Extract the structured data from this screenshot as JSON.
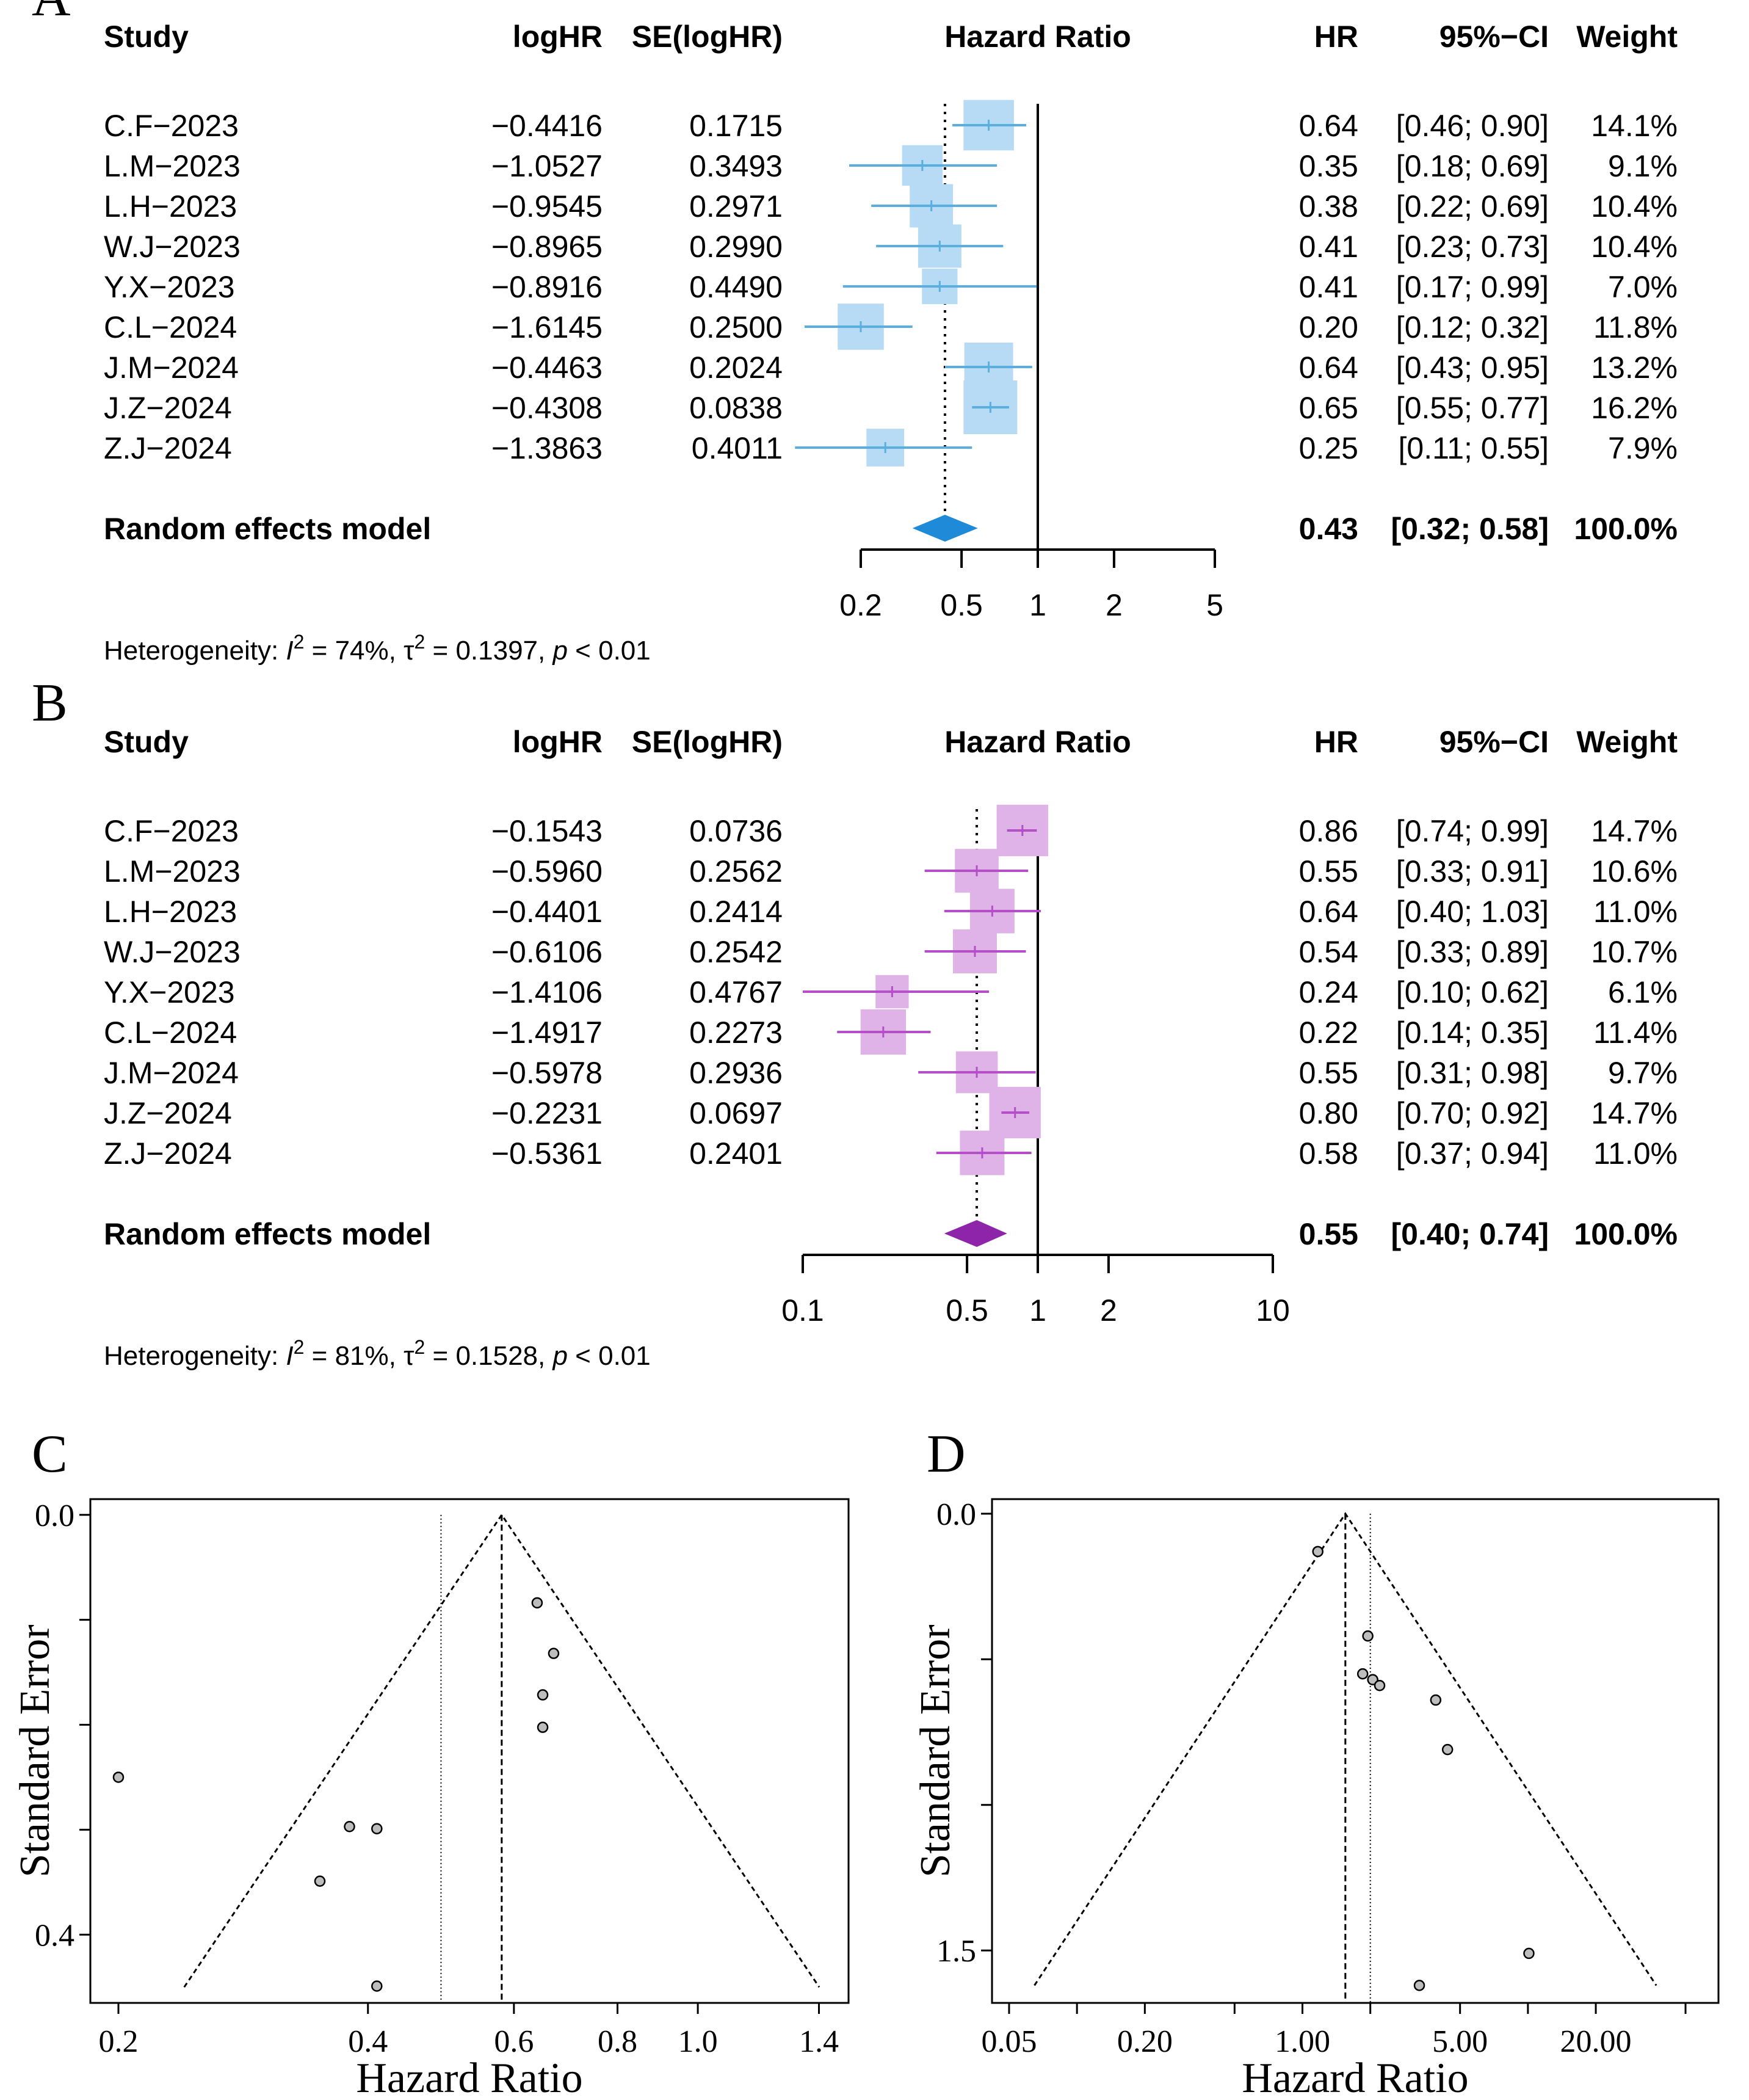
{
  "panels": {
    "A": {
      "letter": "A",
      "headers": {
        "study": "Study",
        "loghr": "logHR",
        "se": "SE(logHR)",
        "plot": "Hazard Ratio",
        "hr": "HR",
        "ci": "95%−CI",
        "weight": "Weight"
      },
      "rows": [
        {
          "study": "C.F−2023",
          "loghr": "−0.4416",
          "se": "0.1715",
          "hr": "0.64",
          "ci": "[0.46; 0.90]",
          "weight": "14.1%",
          "hr_val": 0.64,
          "lo": 0.46,
          "hi": 0.9,
          "w": 14.1
        },
        {
          "study": "L.M−2023",
          "loghr": "−1.0527",
          "se": "0.3493",
          "hr": "0.35",
          "ci": "[0.18; 0.69]",
          "weight": "9.1%",
          "hr_val": 0.35,
          "lo": 0.18,
          "hi": 0.69,
          "w": 9.1
        },
        {
          "study": "L.H−2023",
          "loghr": "−0.9545",
          "se": "0.2971",
          "hr": "0.38",
          "ci": "[0.22; 0.69]",
          "weight": "10.4%",
          "hr_val": 0.38,
          "lo": 0.22,
          "hi": 0.69,
          "w": 10.4
        },
        {
          "study": "W.J−2023",
          "loghr": "−0.8965",
          "se": "0.2990",
          "hr": "0.41",
          "ci": "[0.23; 0.73]",
          "weight": "10.4%",
          "hr_val": 0.41,
          "lo": 0.23,
          "hi": 0.73,
          "w": 10.4
        },
        {
          "study": "Y.X−2023",
          "loghr": "−0.8916",
          "se": "0.4490",
          "hr": "0.41",
          "ci": "[0.17; 0.99]",
          "weight": "7.0%",
          "hr_val": 0.41,
          "lo": 0.17,
          "hi": 0.99,
          "w": 7.0
        },
        {
          "study": "C.L−2024",
          "loghr": "−1.6145",
          "se": "0.2500",
          "hr": "0.20",
          "ci": "[0.12; 0.32]",
          "weight": "11.8%",
          "hr_val": 0.2,
          "lo": 0.12,
          "hi": 0.32,
          "w": 11.8
        },
        {
          "study": "J.M−2024",
          "loghr": "−0.4463",
          "se": "0.2024",
          "hr": "0.64",
          "ci": "[0.43; 0.95]",
          "weight": "13.2%",
          "hr_val": 0.64,
          "lo": 0.43,
          "hi": 0.95,
          "w": 13.2
        },
        {
          "study": "J.Z−2024",
          "loghr": "−0.4308",
          "se": "0.0838",
          "hr": "0.65",
          "ci": "[0.55; 0.77]",
          "weight": "16.2%",
          "hr_val": 0.65,
          "lo": 0.55,
          "hi": 0.77,
          "w": 16.2
        },
        {
          "study": "Z.J−2024",
          "loghr": "−1.3863",
          "se": "0.4011",
          "hr": "0.25",
          "ci": "[0.11; 0.55]",
          "weight": "7.9%",
          "hr_val": 0.25,
          "lo": 0.11,
          "hi": 0.55,
          "w": 7.9
        }
      ],
      "model": {
        "label": "Random effects model",
        "hr": "0.43",
        "ci": "[0.32; 0.58]",
        "weight": "100.0%",
        "hr_val": 0.43,
        "lo": 0.32,
        "hi": 0.58
      },
      "axis_ticks": [
        0.2,
        0.5,
        1,
        2,
        5
      ],
      "axis_labels": [
        "0.2",
        "0.5",
        "1",
        "2",
        "5"
      ],
      "het": {
        "prefix": "Heterogeneity: ",
        "i2_sym": "I",
        "i2_exp": "2",
        "i2_val": " = 74%, ",
        "tau_sym": "τ",
        "tau_exp": "2",
        "tau_val": " = 0.1397, ",
        "p_sym": "p",
        "p_val": " < 0.01"
      },
      "colors": {
        "ci": "#5aaee0",
        "box": "#b7dbf4",
        "diamond": "#1f8ad8"
      }
    },
    "B": {
      "letter": "B",
      "headers": {
        "study": "Study",
        "loghr": "logHR",
        "se": "SE(logHR)",
        "plot": "Hazard Ratio",
        "hr": "HR",
        "ci": "95%−CI",
        "weight": "Weight"
      },
      "rows": [
        {
          "study": "C.F−2023",
          "loghr": "−0.1543",
          "se": "0.0736",
          "hr": "0.86",
          "ci": "[0.74; 0.99]",
          "weight": "14.7%",
          "hr_val": 0.86,
          "lo": 0.74,
          "hi": 0.99,
          "w": 14.7
        },
        {
          "study": "L.M−2023",
          "loghr": "−0.5960",
          "se": "0.2562",
          "hr": "0.55",
          "ci": "[0.33; 0.91]",
          "weight": "10.6%",
          "hr_val": 0.55,
          "lo": 0.33,
          "hi": 0.91,
          "w": 10.6
        },
        {
          "study": "L.H−2023",
          "loghr": "−0.4401",
          "se": "0.2414",
          "hr": "0.64",
          "ci": "[0.40; 1.03]",
          "weight": "11.0%",
          "hr_val": 0.64,
          "lo": 0.4,
          "hi": 1.03,
          "w": 11.0
        },
        {
          "study": "W.J−2023",
          "loghr": "−0.6106",
          "se": "0.2542",
          "hr": "0.54",
          "ci": "[0.33; 0.89]",
          "weight": "10.7%",
          "hr_val": 0.54,
          "lo": 0.33,
          "hi": 0.89,
          "w": 10.7
        },
        {
          "study": "Y.X−2023",
          "loghr": "−1.4106",
          "se": "0.4767",
          "hr": "0.24",
          "ci": "[0.10; 0.62]",
          "weight": "6.1%",
          "hr_val": 0.24,
          "lo": 0.1,
          "hi": 0.62,
          "w": 6.1
        },
        {
          "study": "C.L−2024",
          "loghr": "−1.4917",
          "se": "0.2273",
          "hr": "0.22",
          "ci": "[0.14; 0.35]",
          "weight": "11.4%",
          "hr_val": 0.22,
          "lo": 0.14,
          "hi": 0.35,
          "w": 11.4
        },
        {
          "study": "J.M−2024",
          "loghr": "−0.5978",
          "se": "0.2936",
          "hr": "0.55",
          "ci": "[0.31; 0.98]",
          "weight": "9.7%",
          "hr_val": 0.55,
          "lo": 0.31,
          "hi": 0.98,
          "w": 9.7
        },
        {
          "study": "J.Z−2024",
          "loghr": "−0.2231",
          "se": "0.0697",
          "hr": "0.80",
          "ci": "[0.70; 0.92]",
          "weight": "14.7%",
          "hr_val": 0.8,
          "lo": 0.7,
          "hi": 0.92,
          "w": 14.7
        },
        {
          "study": "Z.J−2024",
          "loghr": "−0.5361",
          "se": "0.2401",
          "hr": "0.58",
          "ci": "[0.37; 0.94]",
          "weight": "11.0%",
          "hr_val": 0.58,
          "lo": 0.37,
          "hi": 0.94,
          "w": 11.0
        }
      ],
      "model": {
        "label": "Random effects model",
        "hr": "0.55",
        "ci": "[0.40; 0.74]",
        "weight": "100.0%",
        "hr_val": 0.55,
        "lo": 0.4,
        "hi": 0.74
      },
      "axis_ticks": [
        0.1,
        0.5,
        1,
        2,
        10
      ],
      "axis_labels": [
        "0.1",
        "0.5",
        "1",
        "2",
        "10"
      ],
      "het": {
        "prefix": "Heterogeneity: ",
        "i2_sym": "I",
        "i2_exp": "2",
        "i2_val": " = 81%, ",
        "tau_sym": "τ",
        "tau_exp": "2",
        "tau_val": " = 0.1528, ",
        "p_sym": "p",
        "p_val": " < 0.01"
      },
      "colors": {
        "ci": "#b44fc8",
        "box": "#dfb3e8",
        "diamond": "#8e24aa"
      }
    },
    "C": {
      "letter": "C",
      "xlabel": "Hazard Ratio",
      "ylabel": "Standard Error",
      "x_ticks": [
        0.2,
        0.4,
        0.6,
        0.8,
        1.0,
        1.4
      ],
      "x_tick_labels": [
        "0.2",
        "0.4",
        "0.6",
        "0.8",
        "1.0",
        "1.4"
      ],
      "y_ticks": [
        0.0,
        0.1,
        0.2,
        0.3,
        0.4
      ],
      "y_tick_labels": [
        "0.0",
        "",
        "",
        "",
        "0.4"
      ],
      "xlim": [
        0.185,
        1.52
      ],
      "ylim": [
        0.465,
        -0.015
      ],
      "funnel_center": 0.58,
      "funnel_se_max": 0.45,
      "fixed_line": 0.49,
      "points": [
        {
          "hr": 0.2,
          "se": 0.25
        },
        {
          "hr": 0.35,
          "se": 0.349
        },
        {
          "hr": 0.38,
          "se": 0.297
        },
        {
          "hr": 0.41,
          "se": 0.299
        },
        {
          "hr": 0.41,
          "se": 0.449
        },
        {
          "hr": 0.64,
          "se": 0.0838
        },
        {
          "hr": 0.65,
          "se": 0.1715
        },
        {
          "hr": 0.65,
          "se": 0.2024
        },
        {
          "hr": 0.67,
          "se": 0.132
        }
      ]
    },
    "D": {
      "letter": "D",
      "xlabel": "Hazard Ratio",
      "ylabel": "Standard Error",
      "x_ticks": [
        0.05,
        0.2,
        1.0,
        5.0,
        20.0
      ],
      "x_minor_ticks": [
        0.1,
        0.5,
        2.0,
        10.0,
        50.0
      ],
      "x_tick_labels": [
        "0.05",
        "0.20",
        "1.00",
        "5.00",
        "20.00"
      ],
      "y_ticks": [
        0.0,
        0.5,
        1.0,
        1.5
      ],
      "y_tick_labels": [
        "0.0",
        "",
        "",
        "1.5"
      ],
      "xlim": [
        0.042,
        70
      ],
      "ylim": [
        1.68,
        -0.05
      ],
      "funnel_center": 1.55,
      "funnel_se_max": 1.62,
      "dashed_line": 1.55,
      "dotted_line": 2.0,
      "points": [
        {
          "hr": 1.17,
          "se": 0.13
        },
        {
          "hr": 1.95,
          "se": 0.42
        },
        {
          "hr": 1.85,
          "se": 0.55
        },
        {
          "hr": 2.05,
          "se": 0.57
        },
        {
          "hr": 2.2,
          "se": 0.59
        },
        {
          "hr": 3.9,
          "se": 0.64
        },
        {
          "hr": 4.4,
          "se": 0.81
        },
        {
          "hr": 3.3,
          "se": 1.62
        },
        {
          "hr": 10.1,
          "se": 1.51
        }
      ]
    }
  },
  "chart_data": [
    {
      "type": "forest",
      "title": "A",
      "xlabel": "Hazard Ratio",
      "scale": "log",
      "categories": [
        "C.F-2023",
        "L.M-2023",
        "L.H-2023",
        "W.J-2023",
        "Y.X-2023",
        "C.L-2024",
        "J.M-2024",
        "J.Z-2024",
        "Z.J-2024"
      ],
      "series": [
        {
          "name": "HR",
          "values": [
            0.64,
            0.35,
            0.38,
            0.41,
            0.41,
            0.2,
            0.64,
            0.65,
            0.25
          ]
        },
        {
          "name": "CI lower",
          "values": [
            0.46,
            0.18,
            0.22,
            0.23,
            0.17,
            0.12,
            0.43,
            0.55,
            0.11
          ]
        },
        {
          "name": "CI upper",
          "values": [
            0.9,
            0.69,
            0.69,
            0.73,
            0.99,
            0.32,
            0.95,
            0.77,
            0.55
          ]
        },
        {
          "name": "Weight (%)",
          "values": [
            14.1,
            9.1,
            10.4,
            10.4,
            7.0,
            11.8,
            13.2,
            16.2,
            7.9
          ]
        }
      ],
      "pooled": {
        "hr": 0.43,
        "lo": 0.32,
        "hi": 0.58
      },
      "xticks": [
        0.2,
        0.5,
        1,
        2,
        5
      ]
    },
    {
      "type": "forest",
      "title": "B",
      "xlabel": "Hazard Ratio",
      "scale": "log",
      "categories": [
        "C.F-2023",
        "L.M-2023",
        "L.H-2023",
        "W.J-2023",
        "Y.X-2023",
        "C.L-2024",
        "J.M-2024",
        "J.Z-2024",
        "Z.J-2024"
      ],
      "series": [
        {
          "name": "HR",
          "values": [
            0.86,
            0.55,
            0.64,
            0.54,
            0.24,
            0.22,
            0.55,
            0.8,
            0.58
          ]
        },
        {
          "name": "CI lower",
          "values": [
            0.74,
            0.33,
            0.4,
            0.33,
            0.1,
            0.14,
            0.31,
            0.7,
            0.37
          ]
        },
        {
          "name": "CI upper",
          "values": [
            0.99,
            0.91,
            1.03,
            0.89,
            0.62,
            0.35,
            0.98,
            0.92,
            0.94
          ]
        },
        {
          "name": "Weight (%)",
          "values": [
            14.7,
            10.6,
            11.0,
            10.7,
            6.1,
            11.4,
            9.7,
            14.7,
            11.0
          ]
        }
      ],
      "pooled": {
        "hr": 0.55,
        "lo": 0.4,
        "hi": 0.74
      },
      "xticks": [
        0.1,
        0.5,
        1,
        2,
        10
      ]
    },
    {
      "type": "scatter",
      "title": "C",
      "xlabel": "Hazard Ratio",
      "ylabel": "Standard Error",
      "x": [
        0.2,
        0.35,
        0.38,
        0.41,
        0.41,
        0.64,
        0.65,
        0.65,
        0.67
      ],
      "y": [
        0.25,
        0.349,
        0.297,
        0.299,
        0.449,
        0.0838,
        0.1715,
        0.2024,
        0.132
      ],
      "xlim": [
        0.185,
        1.52
      ],
      "ylim": [
        0.465,
        -0.015
      ]
    },
    {
      "type": "scatter",
      "title": "D",
      "xlabel": "Hazard Ratio",
      "ylabel": "Standard Error",
      "x": [
        1.17,
        1.95,
        1.85,
        2.05,
        2.2,
        3.9,
        4.4,
        3.3,
        10.1
      ],
      "y": [
        0.13,
        0.42,
        0.55,
        0.57,
        0.59,
        0.64,
        0.81,
        1.62,
        1.51
      ],
      "xlim": [
        0.042,
        70
      ],
      "ylim": [
        1.68,
        -0.05
      ]
    }
  ]
}
